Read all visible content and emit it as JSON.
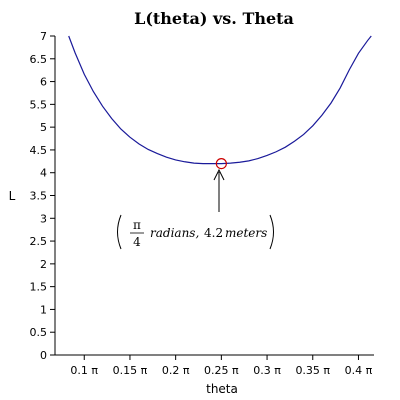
{
  "chart_data": {
    "type": "line",
    "title": "L(theta) vs. Theta",
    "xlabel": "theta",
    "ylabel": "L",
    "xlim": [
      0.068,
      0.417
    ],
    "ylim": [
      0,
      7
    ],
    "x_ticks": [
      0.1,
      0.15,
      0.2,
      0.25,
      0.3,
      0.35,
      0.4
    ],
    "x_tick_labels": [
      "0.1 π",
      "0.15 π",
      "0.2 π",
      "0.25 π",
      "0.3 π",
      "0.35 π",
      "0.4 π"
    ],
    "y_ticks": [
      0,
      0.5,
      1,
      1.5,
      2,
      2.5,
      3,
      3.5,
      4,
      4.5,
      5,
      5.5,
      6,
      6.5,
      7
    ],
    "y_tick_labels": [
      "0",
      "0.5",
      "1",
      "1.5",
      "2",
      "2.5",
      "3",
      "3.5",
      "4",
      "4.5",
      "5",
      "5.5",
      "6",
      "6.5",
      "7"
    ],
    "series": [
      {
        "color": "#1a1a9a",
        "x": [
          0.083,
          0.09,
          0.1,
          0.11,
          0.12,
          0.13,
          0.14,
          0.15,
          0.16,
          0.17,
          0.18,
          0.19,
          0.2,
          0.21,
          0.22,
          0.23,
          0.24,
          0.25,
          0.26,
          0.27,
          0.28,
          0.29,
          0.3,
          0.31,
          0.32,
          0.33,
          0.34,
          0.35,
          0.36,
          0.37,
          0.38,
          0.39,
          0.4,
          0.41,
          0.414
        ],
        "y": [
          7.0,
          6.63,
          6.16,
          5.78,
          5.46,
          5.19,
          4.96,
          4.78,
          4.63,
          4.51,
          4.42,
          4.34,
          4.28,
          4.24,
          4.21,
          4.2,
          4.2,
          4.2,
          4.21,
          4.23,
          4.26,
          4.31,
          4.38,
          4.46,
          4.56,
          4.69,
          4.84,
          5.03,
          5.26,
          5.53,
          5.86,
          6.26,
          6.62,
          6.9,
          7.0
        ]
      }
    ],
    "highlight_point": {
      "x": 0.25,
      "y": 4.2,
      "color": "#cc0000"
    },
    "annotation": {
      "numerator": "π",
      "denominator": "4",
      "text_1": "radians,",
      "value": "4.2",
      "text_2": "meters"
    }
  }
}
